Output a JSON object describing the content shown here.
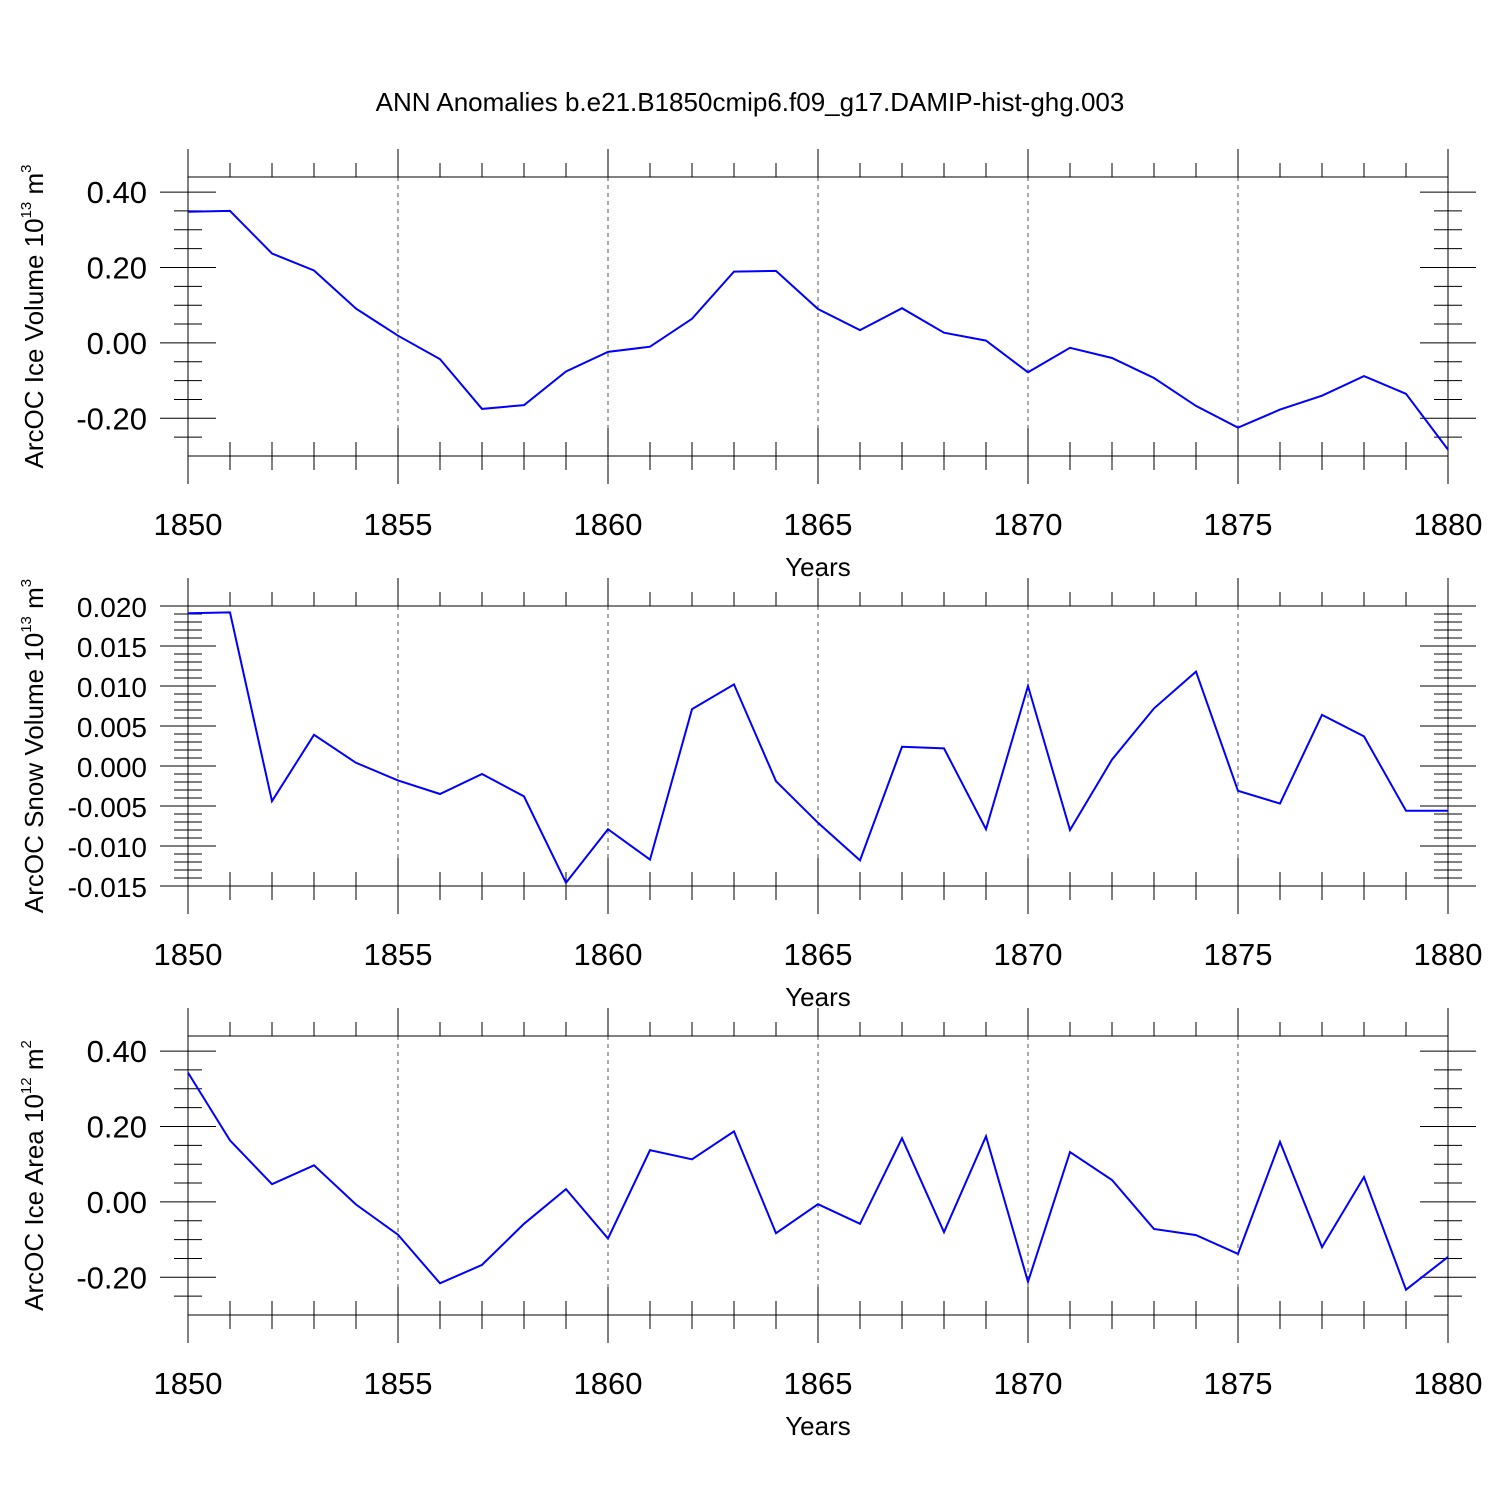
{
  "title": "ANN Anomalies b.e21.B1850cmip6.f09_g17.DAMIP-hist-ghg.003",
  "chart_data": [
    {
      "type": "line",
      "ylabel": "ArcOC Ice Volume 10",
      "ylabel_exp": "13",
      "ylabel_unit": " m",
      "ylabel_unit_exp": "3",
      "xlabel": "Years",
      "xlim": [
        1850,
        1880
      ],
      "ylim": [
        -0.3,
        0.44
      ],
      "yticks": [
        0.4,
        0.2,
        0.0,
        -0.2
      ],
      "ytick_labels": [
        "0.40",
        "0.20",
        "0.00",
        "-0.20"
      ],
      "yminor": [
        0.35,
        0.3,
        0.25,
        0.15,
        0.1,
        0.05,
        -0.05,
        -0.1,
        -0.15,
        -0.25
      ],
      "xticks": [
        1850,
        1855,
        1860,
        1865,
        1870,
        1875,
        1880
      ],
      "xtick_labels": [
        "1850",
        "1855",
        "1860",
        "1865",
        "1870",
        "1875",
        "1880"
      ],
      "x": [
        1850,
        1851,
        1852,
        1853,
        1854,
        1855,
        1856,
        1857,
        1858,
        1859,
        1860,
        1861,
        1862,
        1863,
        1864,
        1865,
        1866,
        1867,
        1868,
        1869,
        1870,
        1871,
        1872,
        1873,
        1874,
        1875,
        1876,
        1877,
        1878,
        1879,
        1880
      ],
      "values": [
        0.348,
        0.35,
        0.237,
        0.192,
        0.091,
        0.019,
        -0.043,
        -0.175,
        -0.165,
        -0.076,
        -0.024,
        -0.01,
        0.064,
        0.189,
        0.191,
        0.09,
        0.034,
        0.092,
        0.027,
        0.006,
        -0.078,
        -0.013,
        -0.04,
        -0.093,
        -0.167,
        -0.225,
        -0.177,
        -0.14,
        -0.088,
        -0.135,
        -0.283
      ]
    },
    {
      "type": "line",
      "ylabel": "ArcOC Snow Volume 10",
      "ylabel_exp": "13",
      "ylabel_unit": " m",
      "ylabel_unit_exp": "3",
      "xlabel": "Years",
      "xlim": [
        1850,
        1880
      ],
      "ylim": [
        -0.015,
        0.02
      ],
      "yticks": [
        0.02,
        0.015,
        0.01,
        0.005,
        0.0,
        -0.005,
        -0.01,
        -0.015
      ],
      "ytick_labels": [
        "0.020",
        "0.015",
        "0.010",
        "0.005",
        "0.000",
        "-0.005",
        "-0.010",
        "-0.015"
      ],
      "yminor": [
        0.019,
        0.018,
        0.017,
        0.016,
        0.014,
        0.013,
        0.012,
        0.011,
        0.009,
        0.008,
        0.007,
        0.006,
        0.004,
        0.003,
        0.002,
        0.001,
        -0.001,
        -0.002,
        -0.003,
        -0.004,
        -0.006,
        -0.007,
        -0.008,
        -0.009,
        -0.011,
        -0.012,
        -0.013,
        -0.014
      ],
      "xticks": [
        1850,
        1855,
        1860,
        1865,
        1870,
        1875,
        1880
      ],
      "xtick_labels": [
        "1850",
        "1855",
        "1860",
        "1865",
        "1870",
        "1875",
        "1880"
      ],
      "x": [
        1850,
        1851,
        1852,
        1853,
        1854,
        1855,
        1856,
        1857,
        1858,
        1859,
        1860,
        1861,
        1862,
        1863,
        1864,
        1865,
        1866,
        1867,
        1868,
        1869,
        1870,
        1871,
        1872,
        1873,
        1874,
        1875,
        1876,
        1877,
        1878,
        1879,
        1880
      ],
      "values": [
        0.0191,
        0.0192,
        -0.0044,
        0.0039,
        0.0004,
        -0.0018,
        -0.0035,
        -0.001,
        -0.0038,
        -0.0146,
        -0.0079,
        -0.0117,
        0.0071,
        0.0102,
        -0.0019,
        -0.0071,
        -0.0118,
        0.0024,
        0.0022,
        -0.0079,
        0.01,
        -0.008,
        0.0008,
        0.0072,
        0.0118,
        -0.0031,
        -0.0047,
        0.0064,
        0.0037,
        -0.0056,
        -0.0056
      ]
    },
    {
      "type": "line",
      "ylabel": "ArcOC Ice Area 10",
      "ylabel_exp": "12",
      "ylabel_unit": " m",
      "ylabel_unit_exp": "2",
      "xlabel": "Years",
      "xlim": [
        1850,
        1880
      ],
      "ylim": [
        -0.3,
        0.44
      ],
      "yticks": [
        0.4,
        0.2,
        0.0,
        -0.2
      ],
      "ytick_labels": [
        "0.40",
        "0.20",
        "0.00",
        "-0.20"
      ],
      "yminor": [
        0.35,
        0.3,
        0.25,
        0.15,
        0.1,
        0.05,
        -0.05,
        -0.1,
        -0.15,
        -0.25
      ],
      "xticks": [
        1850,
        1855,
        1860,
        1865,
        1870,
        1875,
        1880
      ],
      "xtick_labels": [
        "1850",
        "1855",
        "1860",
        "1865",
        "1870",
        "1875",
        "1880"
      ],
      "x": [
        1850,
        1851,
        1852,
        1853,
        1854,
        1855,
        1856,
        1857,
        1858,
        1859,
        1860,
        1861,
        1862,
        1863,
        1864,
        1865,
        1866,
        1867,
        1868,
        1869,
        1870,
        1871,
        1872,
        1873,
        1874,
        1875,
        1876,
        1877,
        1878,
        1879,
        1880
      ],
      "values": [
        0.343,
        0.163,
        0.047,
        0.097,
        -0.007,
        -0.087,
        -0.216,
        -0.167,
        -0.058,
        0.034,
        -0.097,
        0.137,
        0.113,
        0.187,
        -0.083,
        -0.006,
        -0.058,
        0.169,
        -0.08,
        0.174,
        -0.212,
        0.132,
        0.058,
        -0.072,
        -0.088,
        -0.138,
        0.159,
        -0.12,
        0.066,
        -0.233,
        -0.146
      ]
    }
  ]
}
